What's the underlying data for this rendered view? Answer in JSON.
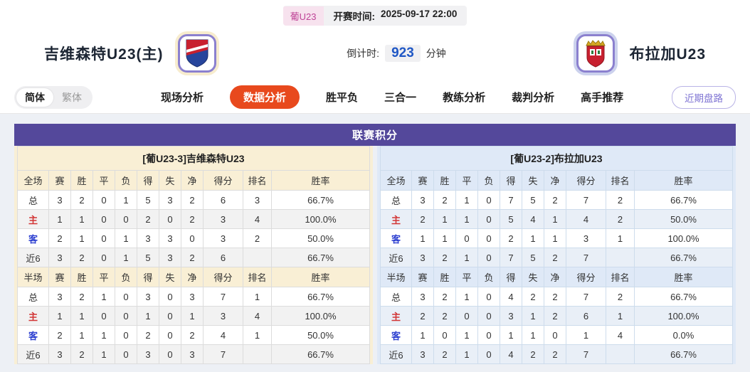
{
  "header": {
    "league_badge": "葡U23",
    "kickoff_label": "开赛时间:",
    "kickoff_time": "2025-09-17 22:00",
    "home_team_name": "吉维森特U23(主)",
    "away_team_name": "布拉加U23",
    "countdown_label": "倒计时:",
    "countdown_value": "923",
    "countdown_unit": "分钟"
  },
  "nav": {
    "lang_options": [
      "简体",
      "繁体"
    ],
    "tabs": [
      {
        "label": "现场分析",
        "active": false
      },
      {
        "label": "数据分析",
        "active": true
      },
      {
        "label": "胜平负",
        "active": false
      },
      {
        "label": "三合一",
        "active": false
      },
      {
        "label": "教练分析",
        "active": false
      },
      {
        "label": "裁判分析",
        "active": false
      },
      {
        "label": "高手推荐",
        "active": false
      }
    ],
    "recent_trend_button": "近期盘路"
  },
  "league_table": {
    "title": "联赛积分",
    "full_columns": [
      "全场",
      "赛",
      "胜",
      "平",
      "负",
      "得",
      "失",
      "净",
      "得分",
      "排名",
      "胜率"
    ],
    "half_columns": [
      "半场",
      "赛",
      "胜",
      "平",
      "负",
      "得",
      "失",
      "净",
      "得分",
      "排名",
      "胜率"
    ],
    "home": {
      "team_header": "[葡U23-3]吉维森特U23",
      "full_rows": [
        {
          "label": "总",
          "type": "total",
          "values": [
            "3",
            "2",
            "0",
            "1",
            "5",
            "3",
            "2",
            "6",
            "3",
            "66.7%"
          ]
        },
        {
          "label": "主",
          "type": "home",
          "values": [
            "1",
            "1",
            "0",
            "0",
            "2",
            "0",
            "2",
            "3",
            "4",
            "100.0%"
          ]
        },
        {
          "label": "客",
          "type": "away",
          "values": [
            "2",
            "1",
            "0",
            "1",
            "3",
            "3",
            "0",
            "3",
            "2",
            "50.0%"
          ]
        },
        {
          "label": "近6",
          "type": "recent",
          "values": [
            "3",
            "2",
            "0",
            "1",
            "5",
            "3",
            "2",
            "6",
            "",
            "66.7%"
          ]
        }
      ],
      "half_rows": [
        {
          "label": "总",
          "type": "total",
          "values": [
            "3",
            "2",
            "1",
            "0",
            "3",
            "0",
            "3",
            "7",
            "1",
            "66.7%"
          ]
        },
        {
          "label": "主",
          "type": "home",
          "values": [
            "1",
            "1",
            "0",
            "0",
            "1",
            "0",
            "1",
            "3",
            "4",
            "100.0%"
          ]
        },
        {
          "label": "客",
          "type": "away",
          "values": [
            "2",
            "1",
            "1",
            "0",
            "2",
            "0",
            "2",
            "4",
            "1",
            "50.0%"
          ]
        },
        {
          "label": "近6",
          "type": "recent",
          "values": [
            "3",
            "2",
            "1",
            "0",
            "3",
            "0",
            "3",
            "7",
            "",
            "66.7%"
          ]
        }
      ]
    },
    "away": {
      "team_header": "[葡U23-2]布拉加U23",
      "full_rows": [
        {
          "label": "总",
          "type": "total",
          "values": [
            "3",
            "2",
            "1",
            "0",
            "7",
            "5",
            "2",
            "7",
            "2",
            "66.7%"
          ]
        },
        {
          "label": "主",
          "type": "home",
          "values": [
            "2",
            "1",
            "1",
            "0",
            "5",
            "4",
            "1",
            "4",
            "2",
            "50.0%"
          ]
        },
        {
          "label": "客",
          "type": "away",
          "values": [
            "1",
            "1",
            "0",
            "0",
            "2",
            "1",
            "1",
            "3",
            "1",
            "100.0%"
          ]
        },
        {
          "label": "近6",
          "type": "recent",
          "values": [
            "3",
            "2",
            "1",
            "0",
            "7",
            "5",
            "2",
            "7",
            "",
            "66.7%"
          ]
        }
      ],
      "half_rows": [
        {
          "label": "总",
          "type": "total",
          "values": [
            "3",
            "2",
            "1",
            "0",
            "4",
            "2",
            "2",
            "7",
            "2",
            "66.7%"
          ]
        },
        {
          "label": "主",
          "type": "home",
          "values": [
            "2",
            "2",
            "0",
            "0",
            "3",
            "1",
            "2",
            "6",
            "1",
            "100.0%"
          ]
        },
        {
          "label": "客",
          "type": "away",
          "values": [
            "1",
            "0",
            "1",
            "0",
            "1",
            "1",
            "0",
            "1",
            "4",
            "0.0%"
          ]
        },
        {
          "label": "近6",
          "type": "recent",
          "values": [
            "3",
            "2",
            "1",
            "0",
            "4",
            "2",
            "2",
            "7",
            "",
            "66.7%"
          ]
        }
      ]
    }
  },
  "colors": {
    "accent_purple": "#54489b",
    "active_tab_orange": "#e8491d",
    "home_panel_bg": "#f9efd5",
    "away_panel_bg": "#dfe9f7",
    "home_label_red": "#d23535",
    "away_label_blue": "#2c3fd0",
    "countdown_blue": "#1f57c5",
    "league_badge_pink": "#bf4397"
  }
}
